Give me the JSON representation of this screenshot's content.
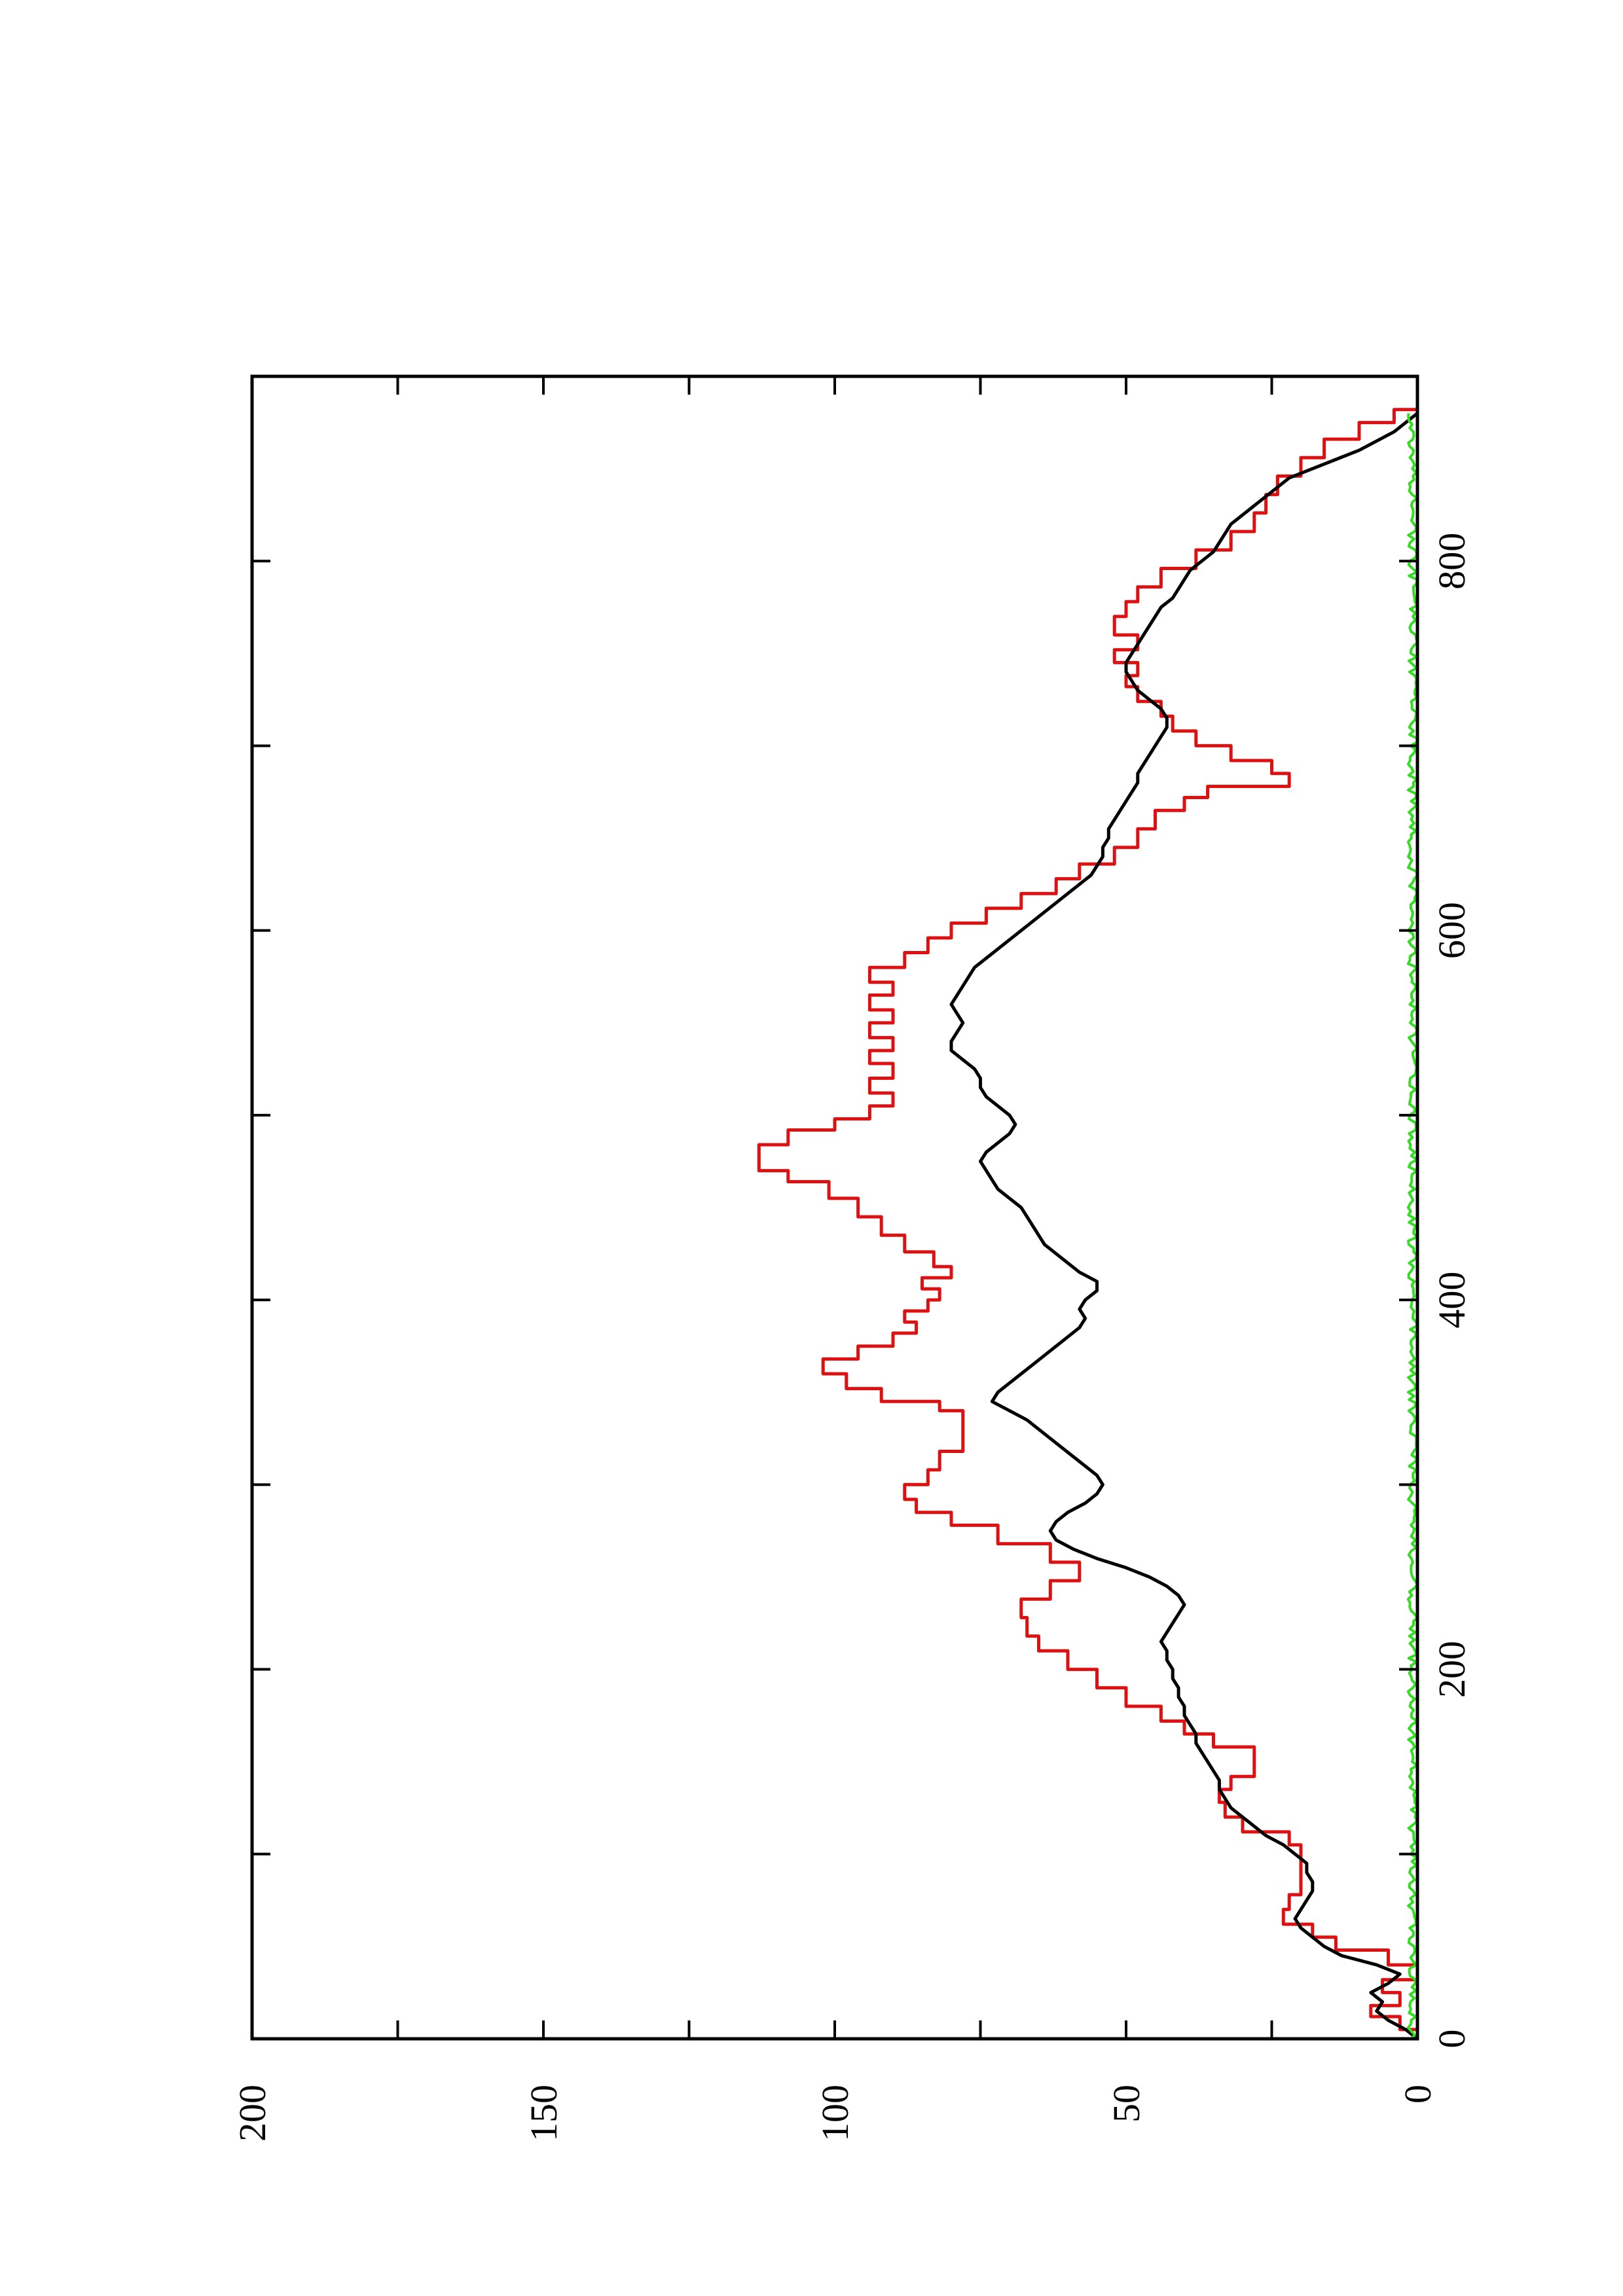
{
  "chart_data": {
    "type": "line",
    "orientation": "rotated 90° counter-clockwise",
    "title": "",
    "xlabel": "",
    "ylabel": "",
    "xlim": [
      0,
      900
    ],
    "ylim": [
      0,
      200
    ],
    "x_ticks": [
      0,
      200,
      400,
      600,
      800
    ],
    "y_ticks": [
      0,
      50,
      100,
      150,
      200
    ],
    "x_tick_labels": [
      "0",
      "200",
      "400",
      "600",
      "800"
    ],
    "y_tick_labels": [
      "0",
      "50",
      "100",
      "150",
      "200"
    ],
    "grid": false,
    "legend": "none",
    "series": [
      {
        "color": "#dd1111",
        "step": true,
        "x": [
          0,
          5,
          12,
          18,
          25,
          32,
          40,
          48,
          55,
          62,
          70,
          78,
          86,
          95,
          105,
          112,
          120,
          128,
          135,
          142,
          150,
          158,
          165,
          172,
          180,
          190,
          200,
          210,
          218,
          228,
          238,
          248,
          258,
          268,
          278,
          285,
          292,
          300,
          308,
          318,
          328,
          340,
          345,
          352,
          360,
          368,
          375,
          382,
          388,
          394,
          400,
          406,
          412,
          418,
          426,
          435,
          445,
          455,
          464,
          470,
          476,
          484,
          492,
          498,
          505,
          512,
          520,
          528,
          535,
          542,
          550,
          557,
          565,
          572,
          580,
          588,
          596,
          604,
          612,
          620,
          628,
          636,
          645,
          655,
          665,
          672,
          678,
          685,
          692,
          700,
          708,
          716,
          724,
          732,
          738,
          745,
          752,
          760,
          770,
          778,
          786,
          796,
          806,
          816,
          826,
          836,
          846,
          856,
          866,
          875,
          882
        ],
        "y": [
          0,
          3,
          8,
          3,
          6,
          0,
          5,
          14,
          18,
          23,
          22,
          20,
          20,
          20,
          22,
          30,
          33,
          34,
          32,
          28,
          28,
          35,
          40,
          44,
          50,
          55,
          60,
          65,
          67,
          68,
          63,
          58,
          63,
          72,
          80,
          86,
          88,
          84,
          82,
          78,
          78,
          82,
          92,
          98,
          102,
          96,
          90,
          86,
          88,
          84,
          82,
          85,
          80,
          83,
          88,
          92,
          96,
          101,
          108,
          113,
          113,
          108,
          100,
          94,
          90,
          94,
          90,
          94,
          90,
          94,
          90,
          94,
          90,
          94,
          88,
          84,
          80,
          74,
          68,
          62,
          58,
          52,
          48,
          45,
          40,
          36,
          22,
          25,
          32,
          38,
          42,
          44,
          48,
          50,
          48,
          52,
          48,
          52,
          50,
          48,
          44,
          38,
          32,
          28,
          26,
          24,
          20,
          16,
          10,
          4,
          0
        ]
      },
      {
        "color": "#000000",
        "step": false,
        "x": [
          0,
          5,
          10,
          15,
          20,
          25,
          30,
          35,
          40,
          45,
          50,
          55,
          60,
          65,
          70,
          75,
          80,
          85,
          90,
          95,
          100,
          105,
          110,
          115,
          120,
          125,
          130,
          135,
          140,
          145,
          150,
          155,
          160,
          165,
          170,
          175,
          180,
          185,
          190,
          195,
          200,
          205,
          210,
          215,
          220,
          225,
          230,
          235,
          240,
          245,
          250,
          255,
          260,
          265,
          270,
          275,
          280,
          285,
          290,
          295,
          300,
          305,
          310,
          315,
          320,
          325,
          330,
          335,
          340,
          345,
          350,
          355,
          360,
          365,
          370,
          375,
          380,
          385,
          390,
          395,
          400,
          405,
          410,
          415,
          420,
          425,
          430,
          435,
          440,
          445,
          450,
          455,
          460,
          465,
          470,
          475,
          480,
          485,
          490,
          495,
          500,
          505,
          510,
          515,
          520,
          525,
          530,
          535,
          540,
          545,
          550,
          555,
          560,
          565,
          570,
          575,
          580,
          585,
          590,
          595,
          600,
          605,
          610,
          615,
          620,
          625,
          630,
          635,
          640,
          645,
          650,
          655,
          660,
          665,
          670,
          675,
          680,
          685,
          690,
          695,
          700,
          705,
          710,
          715,
          720,
          725,
          730,
          735,
          740,
          745,
          750,
          755,
          760,
          765,
          770,
          775,
          780,
          785,
          790,
          795,
          800,
          805,
          810,
          815,
          820,
          825,
          830,
          835,
          840,
          845,
          850,
          855,
          860,
          865,
          870,
          875,
          880
        ],
        "y": [
          0,
          2,
          5,
          7,
          6,
          8,
          5,
          3,
          7,
          13,
          16,
          18,
          20,
          21,
          20,
          19,
          18,
          18,
          19,
          19,
          21,
          23,
          26,
          28,
          30,
          32,
          33,
          34,
          34,
          35,
          36,
          37,
          38,
          38,
          39,
          40,
          40,
          41,
          41,
          42,
          42,
          43,
          43,
          44,
          43,
          42,
          41,
          40,
          41,
          43,
          46,
          50,
          55,
          59,
          62,
          63,
          62,
          60,
          57,
          55,
          54,
          55,
          57,
          59,
          61,
          63,
          65,
          67,
          70,
          73,
          72,
          70,
          68,
          66,
          64,
          62,
          60,
          58,
          57,
          58,
          57,
          55,
          55,
          58,
          60,
          62,
          64,
          65,
          66,
          67,
          68,
          70,
          72,
          73,
          74,
          75,
          74,
          72,
          70,
          69,
          70,
          72,
          74,
          75,
          75,
          76,
          78,
          80,
          80,
          79,
          78,
          79,
          80,
          79,
          78,
          77,
          76,
          74,
          72,
          70,
          68,
          66,
          64,
          62,
          60,
          58,
          56,
          55,
          54,
          54,
          53,
          53,
          52,
          51,
          50,
          49,
          48,
          48,
          47,
          46,
          45,
          44,
          43,
          43,
          44,
          46,
          48,
          49,
          50,
          50,
          49,
          48,
          47,
          46,
          45,
          44,
          42,
          41,
          40,
          39,
          37,
          35,
          34,
          33,
          32,
          30,
          28,
          26,
          24,
          22,
          18,
          14,
          10,
          7,
          4,
          2,
          0
        ]
      },
      {
        "color": "#33dd22",
        "step": false,
        "noise": true,
        "x": [
          0,
          880
        ],
        "y": [
          0,
          0
        ],
        "amplitude": 1.6
      }
    ]
  }
}
